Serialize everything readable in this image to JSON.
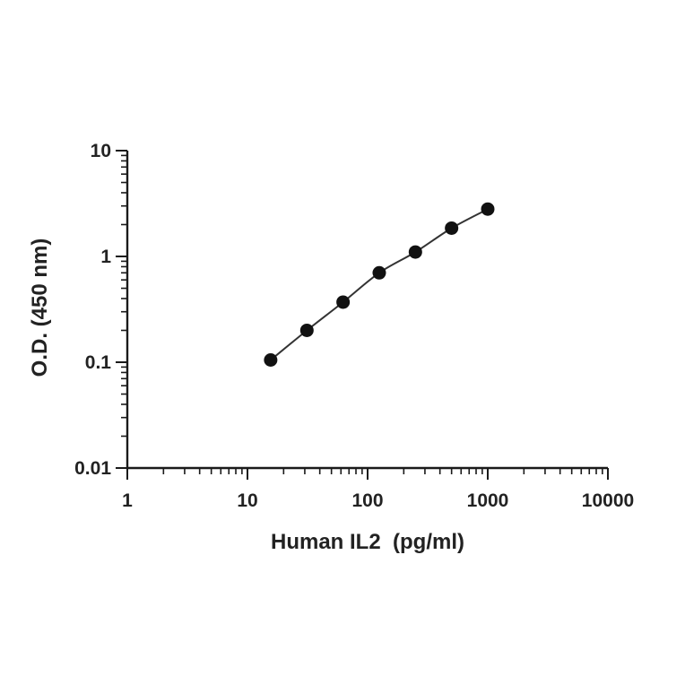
{
  "chart_data": {
    "type": "scatter",
    "title": "",
    "xlabel": "Human IL2  (pg/ml)",
    "ylabel": "O.D. (450 nm)",
    "xscale": "log",
    "yscale": "log",
    "xlim": [
      1,
      10000
    ],
    "ylim": [
      0.01,
      10
    ],
    "xticks": [
      1,
      10,
      100,
      1000,
      10000
    ],
    "xtick_labels": [
      "1",
      "10",
      "100",
      "1000",
      "10000"
    ],
    "yticks": [
      0.01,
      0.1,
      1,
      10
    ],
    "ytick_labels": [
      "0.01",
      "0.1",
      "1",
      "10"
    ],
    "grid": false,
    "legend": "none",
    "fit_line": true,
    "colors": {
      "marker": "#111111",
      "line": "#333333",
      "axis": "#1a1a1a"
    },
    "series": [
      {
        "x": [
          15.6,
          31.25,
          62.5,
          125,
          250,
          500,
          1000
        ],
        "y": [
          0.105,
          0.2,
          0.37,
          0.7,
          1.1,
          1.85,
          2.8
        ]
      }
    ]
  }
}
